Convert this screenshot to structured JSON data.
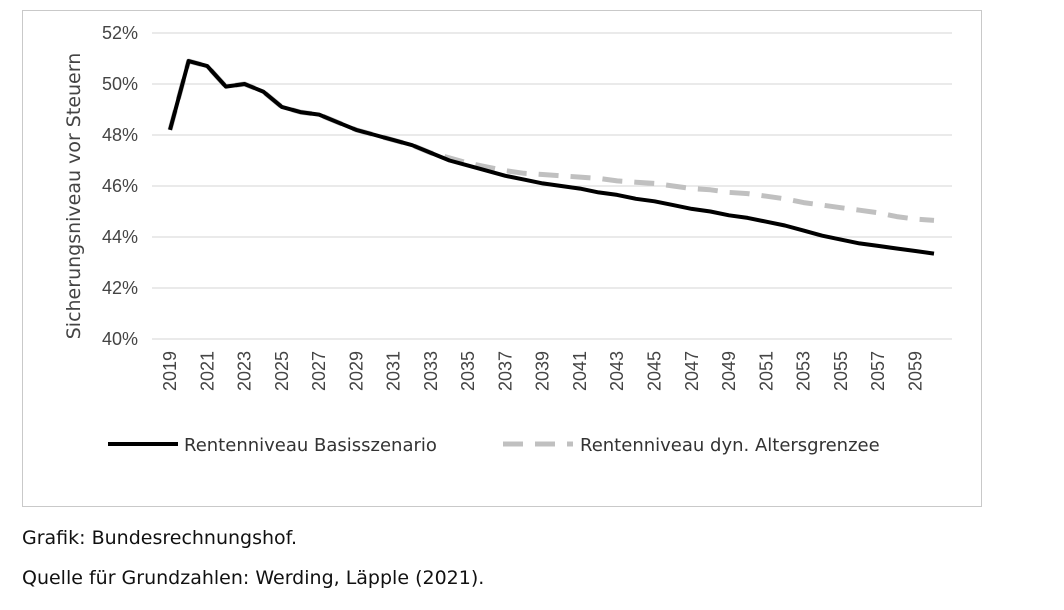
{
  "chart_data": {
    "type": "line",
    "title": "",
    "xlabel": "",
    "ylabel": "Sicherungsniveau vor Steuern",
    "ylim": [
      40,
      52
    ],
    "yticks": [
      "40%",
      "42%",
      "44%",
      "46%",
      "48%",
      "50%",
      "52%"
    ],
    "ytick_values": [
      40,
      42,
      44,
      46,
      48,
      50,
      52
    ],
    "xticks": [
      "2019",
      "2021",
      "2023",
      "2025",
      "2027",
      "2029",
      "2031",
      "2033",
      "2035",
      "2037",
      "2039",
      "2041",
      "2043",
      "2045",
      "2047",
      "2049",
      "2051",
      "2053",
      "2055",
      "2057",
      "2059"
    ],
    "x_range": [
      2019,
      2060
    ],
    "grid": true,
    "legend_position": "bottom",
    "x": [
      2019,
      2020,
      2021,
      2022,
      2023,
      2024,
      2025,
      2026,
      2027,
      2028,
      2029,
      2030,
      2031,
      2032,
      2033,
      2034,
      2035,
      2036,
      2037,
      2038,
      2039,
      2040,
      2041,
      2042,
      2043,
      2044,
      2045,
      2046,
      2047,
      2048,
      2049,
      2050,
      2051,
      2052,
      2053,
      2054,
      2055,
      2056,
      2057,
      2058,
      2059,
      2060
    ],
    "series": [
      {
        "name": "Rentenniveau Basisszenario",
        "color": "#000000",
        "style": "solid",
        "values": [
          48.2,
          50.9,
          50.7,
          49.9,
          50.0,
          49.7,
          49.1,
          48.9,
          48.8,
          48.5,
          48.2,
          48.0,
          47.8,
          47.6,
          47.3,
          47.0,
          46.8,
          46.6,
          46.4,
          46.25,
          46.1,
          46.0,
          45.9,
          45.75,
          45.65,
          45.5,
          45.4,
          45.25,
          45.1,
          45.0,
          44.85,
          44.75,
          44.6,
          44.45,
          44.25,
          44.05,
          43.9,
          43.75,
          43.65,
          43.55,
          43.45,
          43.35
        ]
      },
      {
        "name": "Rentenniveau dyn. Altersgrenzee",
        "color": "#c0c0c0",
        "style": "dashed",
        "values": [
          48.2,
          50.9,
          50.7,
          49.9,
          50.0,
          49.7,
          49.1,
          48.9,
          48.8,
          48.5,
          48.2,
          48.0,
          47.8,
          47.6,
          47.3,
          47.1,
          46.9,
          46.75,
          46.6,
          46.5,
          46.45,
          46.4,
          46.35,
          46.3,
          46.2,
          46.15,
          46.1,
          46.0,
          45.9,
          45.85,
          45.75,
          45.7,
          45.6,
          45.5,
          45.35,
          45.25,
          45.15,
          45.05,
          44.95,
          44.8,
          44.7,
          44.65
        ]
      }
    ]
  },
  "captions": {
    "line1": "Grafik: Bundesrechnungshof.",
    "line2": "Quelle für Grundzahlen: Werding, Läpple (2021)."
  }
}
